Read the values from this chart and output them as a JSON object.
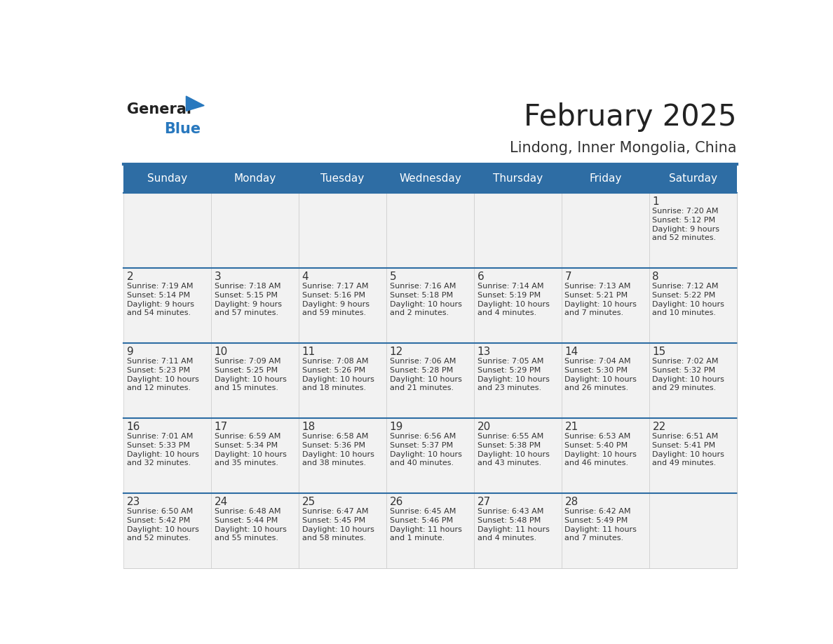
{
  "title": "February 2025",
  "subtitle": "Lindong, Inner Mongolia, China",
  "days_of_week": [
    "Sunday",
    "Monday",
    "Tuesday",
    "Wednesday",
    "Thursday",
    "Friday",
    "Saturday"
  ],
  "header_bg": "#2E6DA4",
  "header_text": "#FFFFFF",
  "cell_bg_light": "#F2F2F2",
  "cell_bg_white": "#FFFFFF",
  "cell_text": "#333333",
  "grid_line": "#CCCCCC",
  "title_color": "#222222",
  "subtitle_color": "#333333",
  "logo_general_color": "#222222",
  "logo_blue_color": "#2878BE",
  "calendar_data": [
    [
      null,
      null,
      null,
      null,
      null,
      null,
      {
        "day": 1,
        "sunrise": "7:20 AM",
        "sunset": "5:12 PM",
        "daylight": "9 hours\nand 52 minutes."
      }
    ],
    [
      {
        "day": 2,
        "sunrise": "7:19 AM",
        "sunset": "5:14 PM",
        "daylight": "9 hours\nand 54 minutes."
      },
      {
        "day": 3,
        "sunrise": "7:18 AM",
        "sunset": "5:15 PM",
        "daylight": "9 hours\nand 57 minutes."
      },
      {
        "day": 4,
        "sunrise": "7:17 AM",
        "sunset": "5:16 PM",
        "daylight": "9 hours\nand 59 minutes."
      },
      {
        "day": 5,
        "sunrise": "7:16 AM",
        "sunset": "5:18 PM",
        "daylight": "10 hours\nand 2 minutes."
      },
      {
        "day": 6,
        "sunrise": "7:14 AM",
        "sunset": "5:19 PM",
        "daylight": "10 hours\nand 4 minutes."
      },
      {
        "day": 7,
        "sunrise": "7:13 AM",
        "sunset": "5:21 PM",
        "daylight": "10 hours\nand 7 minutes."
      },
      {
        "day": 8,
        "sunrise": "7:12 AM",
        "sunset": "5:22 PM",
        "daylight": "10 hours\nand 10 minutes."
      }
    ],
    [
      {
        "day": 9,
        "sunrise": "7:11 AM",
        "sunset": "5:23 PM",
        "daylight": "10 hours\nand 12 minutes."
      },
      {
        "day": 10,
        "sunrise": "7:09 AM",
        "sunset": "5:25 PM",
        "daylight": "10 hours\nand 15 minutes."
      },
      {
        "day": 11,
        "sunrise": "7:08 AM",
        "sunset": "5:26 PM",
        "daylight": "10 hours\nand 18 minutes."
      },
      {
        "day": 12,
        "sunrise": "7:06 AM",
        "sunset": "5:28 PM",
        "daylight": "10 hours\nand 21 minutes."
      },
      {
        "day": 13,
        "sunrise": "7:05 AM",
        "sunset": "5:29 PM",
        "daylight": "10 hours\nand 23 minutes."
      },
      {
        "day": 14,
        "sunrise": "7:04 AM",
        "sunset": "5:30 PM",
        "daylight": "10 hours\nand 26 minutes."
      },
      {
        "day": 15,
        "sunrise": "7:02 AM",
        "sunset": "5:32 PM",
        "daylight": "10 hours\nand 29 minutes."
      }
    ],
    [
      {
        "day": 16,
        "sunrise": "7:01 AM",
        "sunset": "5:33 PM",
        "daylight": "10 hours\nand 32 minutes."
      },
      {
        "day": 17,
        "sunrise": "6:59 AM",
        "sunset": "5:34 PM",
        "daylight": "10 hours\nand 35 minutes."
      },
      {
        "day": 18,
        "sunrise": "6:58 AM",
        "sunset": "5:36 PM",
        "daylight": "10 hours\nand 38 minutes."
      },
      {
        "day": 19,
        "sunrise": "6:56 AM",
        "sunset": "5:37 PM",
        "daylight": "10 hours\nand 40 minutes."
      },
      {
        "day": 20,
        "sunrise": "6:55 AM",
        "sunset": "5:38 PM",
        "daylight": "10 hours\nand 43 minutes."
      },
      {
        "day": 21,
        "sunrise": "6:53 AM",
        "sunset": "5:40 PM",
        "daylight": "10 hours\nand 46 minutes."
      },
      {
        "day": 22,
        "sunrise": "6:51 AM",
        "sunset": "5:41 PM",
        "daylight": "10 hours\nand 49 minutes."
      }
    ],
    [
      {
        "day": 23,
        "sunrise": "6:50 AM",
        "sunset": "5:42 PM",
        "daylight": "10 hours\nand 52 minutes."
      },
      {
        "day": 24,
        "sunrise": "6:48 AM",
        "sunset": "5:44 PM",
        "daylight": "10 hours\nand 55 minutes."
      },
      {
        "day": 25,
        "sunrise": "6:47 AM",
        "sunset": "5:45 PM",
        "daylight": "10 hours\nand 58 minutes."
      },
      {
        "day": 26,
        "sunrise": "6:45 AM",
        "sunset": "5:46 PM",
        "daylight": "11 hours\nand 1 minute."
      },
      {
        "day": 27,
        "sunrise": "6:43 AM",
        "sunset": "5:48 PM",
        "daylight": "11 hours\nand 4 minutes."
      },
      {
        "day": 28,
        "sunrise": "6:42 AM",
        "sunset": "5:49 PM",
        "daylight": "11 hours\nand 7 minutes."
      },
      null
    ]
  ]
}
